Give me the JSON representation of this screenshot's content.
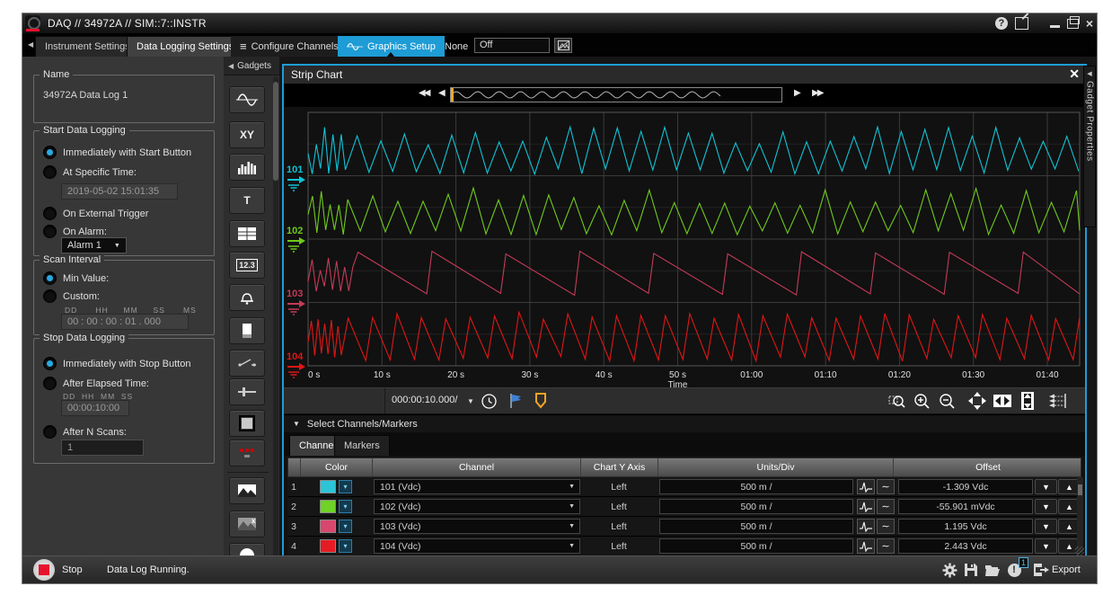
{
  "window": {
    "title": "DAQ // 34972A // SIM::7::INSTR"
  },
  "left_tabs": {
    "instrument": "Instrument Settings",
    "data_logging": "Data Logging Settings"
  },
  "top_tabs": {
    "configure": "Configure Channels",
    "graphics": "Graphics Setup",
    "none_label": "None",
    "none_value": "Off"
  },
  "gadgets": {
    "header": "Gadgets"
  },
  "left_panel": {
    "name_group": {
      "title": "Name",
      "value": "34972A Data Log 1"
    },
    "start_group": {
      "title": "Start Data Logging",
      "opt_immediate": "Immediately with Start Button",
      "opt_specific": "At Specific Time:",
      "time_value": "2019-05-02 15:01:35",
      "opt_external": "On External Trigger",
      "opt_alarm": "On Alarm:",
      "alarm_value": "Alarm 1"
    },
    "interval_group": {
      "title": "Scan Interval",
      "opt_min": "Min Value:",
      "opt_custom": "Custom:",
      "unit_labels": "DD      HH     MM     SS      MS",
      "value": "00 : 00 : 00 : 01 . 000"
    },
    "stop_group": {
      "title": "Stop Data Logging",
      "opt_immediate": "Immediately with Stop Button",
      "opt_elapsed": "After Elapsed Time:",
      "elapsed_labels": "DD  HH  MM  SS",
      "elapsed_value": "00:00:10:00",
      "opt_nscans": "After N Scans:",
      "scans_value": "1"
    }
  },
  "strip_chart": {
    "title": "Strip Chart",
    "timebase": "000:00:10.000/",
    "select_label": "Select Channels/Markers",
    "tab_channels": "Channels",
    "tab_markers": "Markers",
    "properties_tab": "Gadget Properties"
  },
  "chart_data": {
    "type": "line",
    "xlabel": "Time",
    "x_ticks": [
      "0 s",
      "10 s",
      "20 s",
      "30 s",
      "40 s",
      "50 s",
      "01:00",
      "01:10",
      "01:20",
      "01:30",
      "01:40"
    ],
    "x_tick_seconds": [
      0,
      10,
      20,
      30,
      40,
      50,
      60,
      70,
      80,
      90,
      100
    ],
    "x_visible_seconds": 104,
    "grid": true,
    "series": [
      {
        "name": "101",
        "color": "#10c3d6",
        "wave": "triangle",
        "period_s": 3.2,
        "units_div": "500 m /",
        "offset": "-1.309 Vdc"
      },
      {
        "name": "102",
        "color": "#6fca1d",
        "wave": "triangle",
        "period_s": 3.4,
        "units_div": "500 m /",
        "offset": "-55.901 mVdc"
      },
      {
        "name": "103",
        "color": "#c43a58",
        "wave": "sawtooth-slow",
        "period_s": 10.0,
        "units_div": "500 m /",
        "offset": "1.195 Vdc"
      },
      {
        "name": "104",
        "color": "#e01616",
        "wave": "sawtooth",
        "period_s": 3.3,
        "units_div": "500 m /",
        "offset": "2.443 Vdc"
      }
    ]
  },
  "channels_table": {
    "headers": [
      "Color",
      "Channel",
      "Chart Y Axis",
      "Units/Div",
      "Offset"
    ],
    "rows": [
      {
        "num": "1",
        "color": "#2cc5d8",
        "channel": "101 (Vdc)",
        "y_axis": "Left",
        "units_div": "500 m /",
        "offset": "-1.309 Vdc"
      },
      {
        "num": "2",
        "color": "#6fd327",
        "channel": "102 (Vdc)",
        "y_axis": "Left",
        "units_div": "500 m /",
        "offset": "-55.901 mVdc"
      },
      {
        "num": "3",
        "color": "#d8476d",
        "channel": "103 (Vdc)",
        "y_axis": "Left",
        "units_div": "500 m /",
        "offset": "1.195 Vdc"
      },
      {
        "num": "4",
        "color": "#e51c23",
        "channel": "104 (Vdc)",
        "y_axis": "Left",
        "units_div": "500 m /",
        "offset": "2.443 Vdc"
      }
    ]
  },
  "status_bar": {
    "stop": "Stop",
    "message": "Data Log Running.",
    "export": "Export",
    "alert_badge": "1"
  }
}
